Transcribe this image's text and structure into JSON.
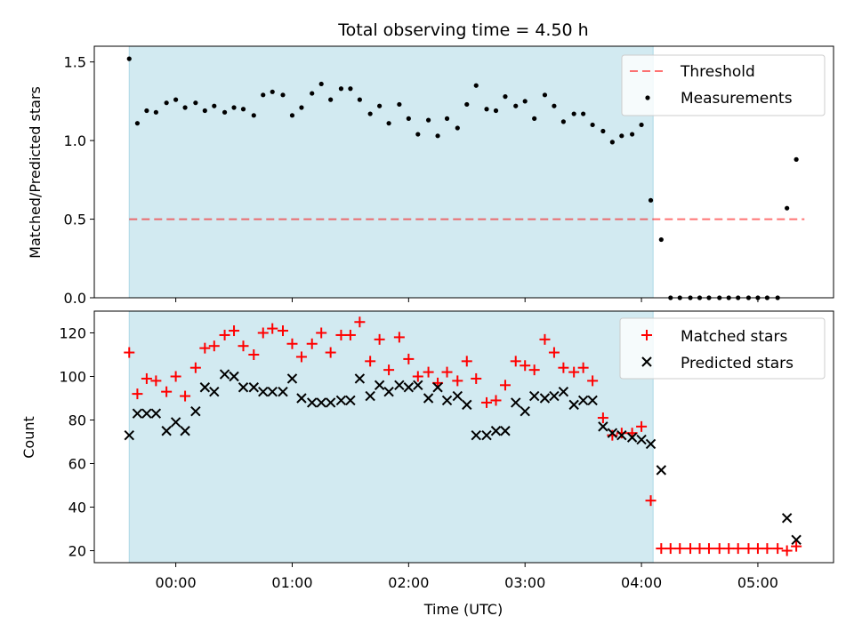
{
  "title": "Total observing time = 4.50 h",
  "colors": {
    "shade": "#add8e6",
    "threshold": "#ff0000",
    "measurement": "#000000",
    "matched": "#ff0000",
    "predicted": "#000000"
  },
  "chart_data": [
    {
      "type": "scatter",
      "panel": "top",
      "ylabel": "Matched/Predicted stars",
      "xlim": [
        -0.7,
        5.65
      ],
      "ylim": [
        0,
        1.6
      ],
      "yticks": [
        0.0,
        0.5,
        1.0,
        1.5
      ],
      "ytick_labels": [
        "0.0",
        "0.5",
        "1.0",
        "1.5"
      ],
      "legend": {
        "position": "upper right",
        "entries": [
          "Threshold",
          "Measurements"
        ]
      },
      "shaded_span": [
        -0.4,
        4.1
      ],
      "threshold": {
        "name": "Threshold",
        "y": 0.5,
        "x_range": [
          -0.4,
          5.4
        ]
      },
      "series": [
        {
          "name": "Measurements",
          "x": [
            -0.4,
            -0.33,
            -0.25,
            -0.17,
            -0.08,
            0.0,
            0.08,
            0.17,
            0.25,
            0.33,
            0.42,
            0.5,
            0.58,
            0.67,
            0.75,
            0.83,
            0.92,
            1.0,
            1.08,
            1.17,
            1.25,
            1.33,
            1.42,
            1.5,
            1.58,
            1.67,
            1.75,
            1.83,
            1.92,
            2.0,
            2.08,
            2.17,
            2.25,
            2.33,
            2.42,
            2.5,
            2.58,
            2.67,
            2.75,
            2.83,
            2.92,
            3.0,
            3.08,
            3.17,
            3.25,
            3.33,
            3.42,
            3.5,
            3.58,
            3.67,
            3.75,
            3.83,
            3.92,
            4.0,
            4.08,
            4.17,
            4.25,
            4.33,
            4.42,
            4.5,
            4.58,
            4.67,
            4.75,
            4.83,
            4.92,
            5.0,
            5.08,
            5.17,
            5.25,
            5.33
          ],
          "y": [
            1.52,
            1.11,
            1.19,
            1.18,
            1.24,
            1.26,
            1.21,
            1.24,
            1.19,
            1.22,
            1.18,
            1.21,
            1.2,
            1.16,
            1.29,
            1.31,
            1.29,
            1.16,
            1.21,
            1.3,
            1.36,
            1.26,
            1.33,
            1.33,
            1.26,
            1.17,
            1.22,
            1.11,
            1.23,
            1.14,
            1.04,
            1.13,
            1.03,
            1.14,
            1.08,
            1.23,
            1.35,
            1.2,
            1.19,
            1.28,
            1.22,
            1.25,
            1.14,
            1.29,
            1.22,
            1.12,
            1.17,
            1.17,
            1.1,
            1.06,
            0.99,
            1.03,
            1.04,
            1.1,
            0.62,
            0.37,
            0.0,
            0.0,
            0.0,
            0.0,
            0.0,
            0.0,
            0.0,
            0.0,
            0.0,
            0.0,
            0.0,
            0.0,
            0.57,
            0.88
          ]
        }
      ]
    },
    {
      "type": "scatter",
      "panel": "bottom",
      "ylabel": "Count",
      "xlabel": "Time (UTC)",
      "xlim": [
        -0.7,
        5.65
      ],
      "ylim": [
        14.5,
        130
      ],
      "yticks": [
        20,
        40,
        60,
        80,
        100,
        120
      ],
      "ytick_labels": [
        "20",
        "40",
        "60",
        "80",
        "100",
        "120"
      ],
      "xticks": [
        0,
        1,
        2,
        3,
        4,
        5
      ],
      "xtick_labels": [
        "00:00",
        "01:00",
        "02:00",
        "03:00",
        "04:00",
        "05:00"
      ],
      "legend": {
        "position": "upper right",
        "entries": [
          "Matched stars",
          "Predicted stars"
        ]
      },
      "shaded_span": [
        -0.4,
        4.1
      ],
      "series": [
        {
          "name": "Matched stars",
          "marker": "+",
          "x": [
            -0.4,
            -0.33,
            -0.25,
            -0.17,
            -0.08,
            0.0,
            0.08,
            0.17,
            0.25,
            0.33,
            0.42,
            0.5,
            0.58,
            0.67,
            0.75,
            0.83,
            0.92,
            1.0,
            1.08,
            1.17,
            1.25,
            1.33,
            1.42,
            1.5,
            1.58,
            1.67,
            1.75,
            1.83,
            1.92,
            2.0,
            2.08,
            2.17,
            2.25,
            2.33,
            2.42,
            2.5,
            2.58,
            2.67,
            2.75,
            2.83,
            2.92,
            3.0,
            3.08,
            3.17,
            3.25,
            3.33,
            3.42,
            3.5,
            3.58,
            3.67,
            3.75,
            3.83,
            3.92,
            4.0,
            4.08,
            4.17,
            4.25,
            4.33,
            4.42,
            4.5,
            4.58,
            4.67,
            4.75,
            4.83,
            4.92,
            5.0,
            5.08,
            5.17,
            5.25,
            5.33
          ],
          "y": [
            111,
            92,
            99,
            98,
            93,
            100,
            91,
            104,
            113,
            114,
            119,
            121,
            114,
            110,
            120,
            122,
            121,
            115,
            109,
            115,
            120,
            111,
            119,
            119,
            125,
            107,
            117,
            103,
            118,
            108,
            100,
            102,
            97,
            102,
            98,
            107,
            99,
            88,
            89,
            96,
            107,
            105,
            103,
            117,
            111,
            104,
            102,
            104,
            98,
            81,
            73,
            74,
            74,
            77,
            43,
            21,
            21,
            21,
            21,
            21,
            21,
            21,
            21,
            21,
            21,
            21,
            21,
            21,
            20,
            22
          ]
        },
        {
          "name": "Predicted stars",
          "marker": "x",
          "x": [
            -0.4,
            -0.33,
            -0.25,
            -0.17,
            -0.08,
            0.0,
            0.08,
            0.17,
            0.25,
            0.33,
            0.42,
            0.5,
            0.58,
            0.67,
            0.75,
            0.83,
            0.92,
            1.0,
            1.08,
            1.17,
            1.25,
            1.33,
            1.42,
            1.5,
            1.58,
            1.67,
            1.75,
            1.83,
            1.92,
            2.0,
            2.08,
            2.17,
            2.25,
            2.33,
            2.42,
            2.5,
            2.58,
            2.67,
            2.75,
            2.83,
            2.92,
            3.0,
            3.08,
            3.17,
            3.25,
            3.33,
            3.42,
            3.5,
            3.58,
            3.67,
            3.75,
            3.83,
            3.92,
            4.0,
            4.08,
            4.17,
            5.25,
            5.33
          ],
          "y": [
            73,
            83,
            83,
            83,
            75,
            79,
            75,
            84,
            95,
            93,
            101,
            100,
            95,
            95,
            93,
            93,
            93,
            99,
            90,
            88,
            88,
            88,
            89,
            89,
            99,
            91,
            96,
            93,
            96,
            95,
            96,
            90,
            95,
            89,
            91,
            87,
            73,
            73,
            75,
            75,
            88,
            84,
            91,
            90,
            91,
            93,
            87,
            89,
            89,
            77,
            74,
            73,
            72,
            71,
            69,
            57,
            35,
            25
          ]
        }
      ]
    }
  ]
}
